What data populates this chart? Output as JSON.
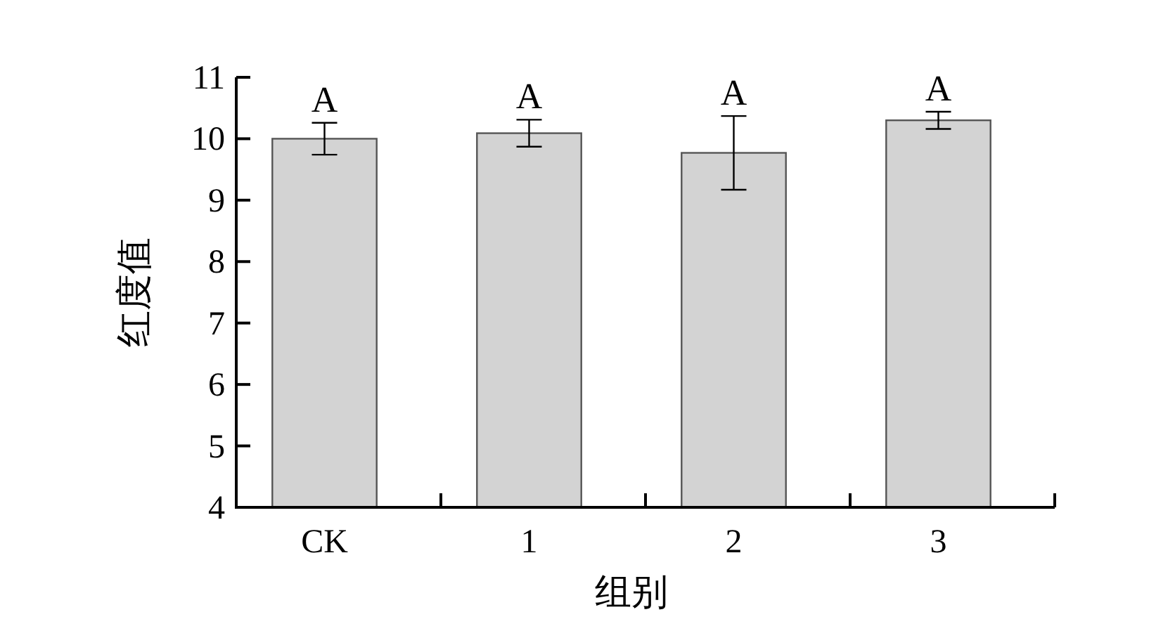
{
  "chart_data": {
    "type": "bar",
    "xlabel": "组别",
    "ylabel": "红度值",
    "categories": [
      "CK",
      "1",
      "2",
      "3"
    ],
    "values": [
      10.0,
      10.09,
      9.77,
      10.3
    ],
    "errors": [
      0.26,
      0.22,
      0.6,
      0.14
    ],
    "color": "#d3d3d3",
    "ylim": [
      4,
      11
    ],
    "yticks": [
      4,
      5,
      6,
      7,
      8,
      9,
      10,
      11
    ],
    "annotations": [
      {
        "text": "A",
        "x": "CK",
        "y": 10.26
      },
      {
        "text": "A",
        "x": "1",
        "y": 10.31
      },
      {
        "text": "A",
        "x": "2",
        "y": 10.37
      },
      {
        "text": "A",
        "x": "3",
        "y": 10.44
      }
    ]
  }
}
